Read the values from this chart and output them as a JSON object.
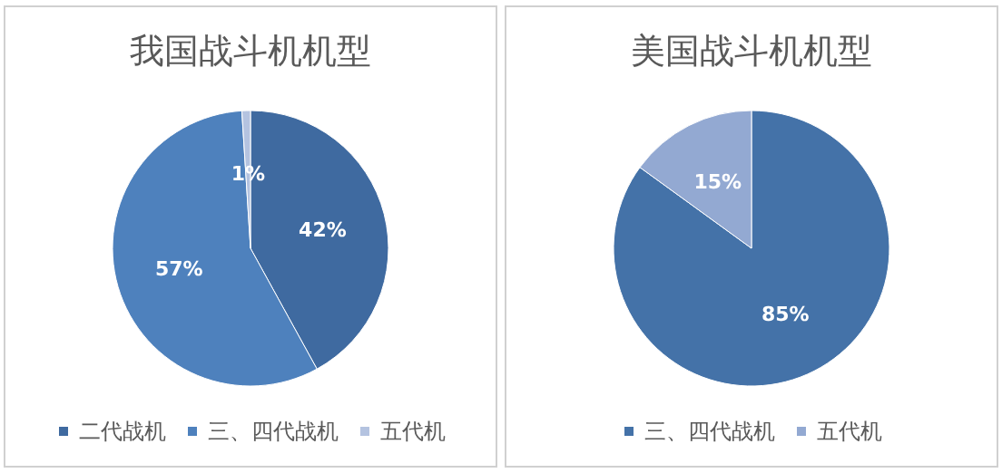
{
  "chart_data": [
    {
      "type": "pie",
      "title": "我国战斗机机型",
      "categories": [
        "二代战机",
        "三、四代战机",
        "五代机"
      ],
      "values": [
        42,
        57,
        1
      ],
      "colors": [
        "#3f6aa0",
        "#4e81bd",
        "#b4c3e0"
      ],
      "value_labels": [
        "42%",
        "57%",
        "1%"
      ],
      "legend": "bottom"
    },
    {
      "type": "pie",
      "title": "美国战斗机机型",
      "categories": [
        "三、四代战机",
        "五代机"
      ],
      "values": [
        85,
        15
      ],
      "colors": [
        "#4472a8",
        "#93a9d2"
      ],
      "value_labels": [
        "85%",
        "15%"
      ],
      "legend": "bottom"
    }
  ]
}
